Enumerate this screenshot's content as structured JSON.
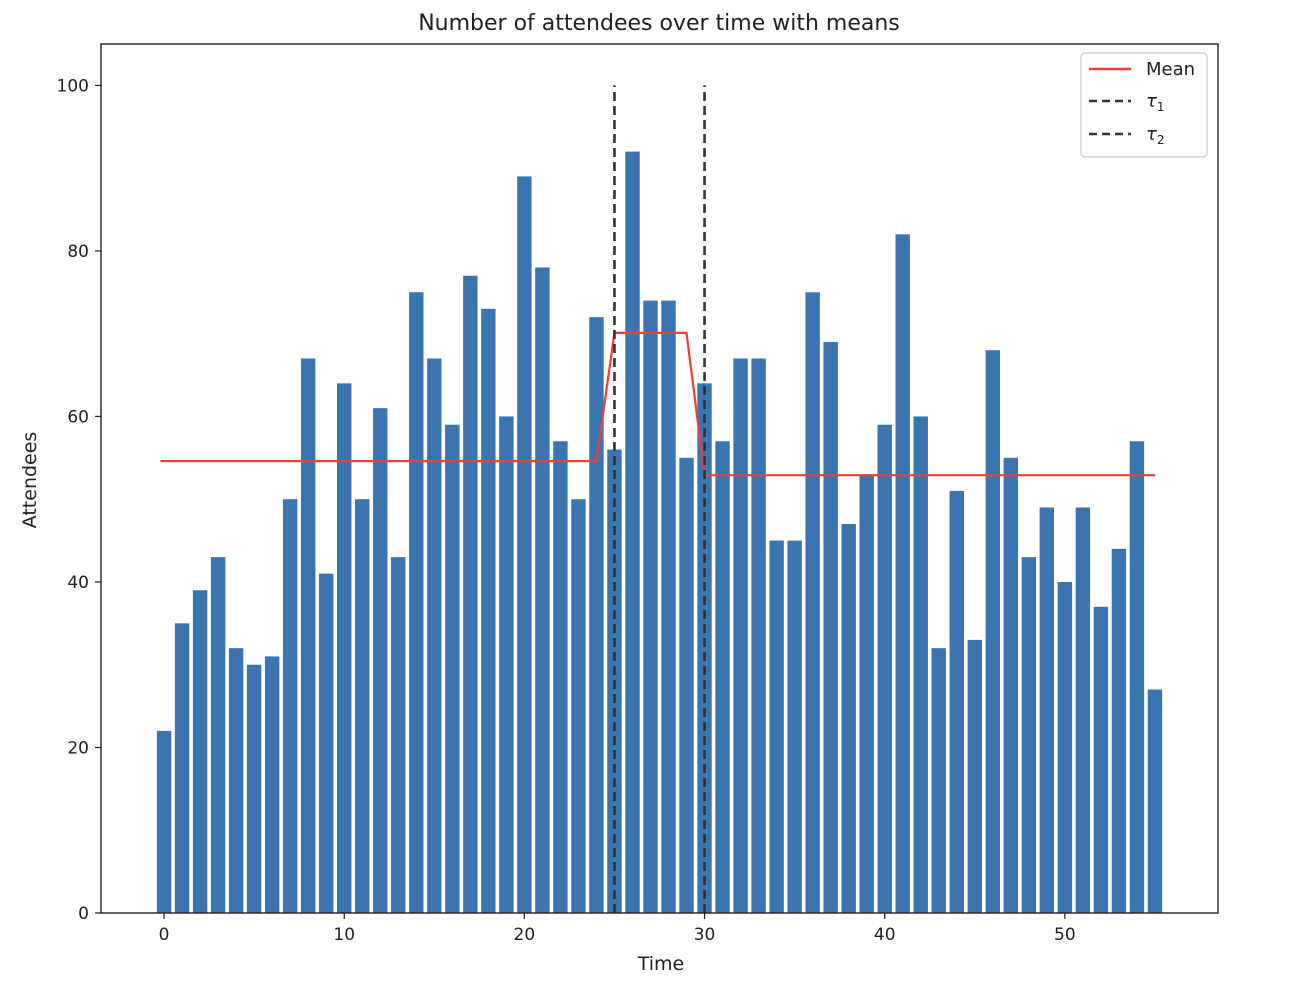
{
  "chart_data": {
    "type": "bar",
    "title": "Number of attendees over time with means",
    "xlabel": "Time",
    "ylabel": "Attendees",
    "xlim": [
      -3.5,
      58.5
    ],
    "ylim": [
      0,
      105
    ],
    "xticks": [
      0,
      10,
      20,
      30,
      40,
      50
    ],
    "yticks": [
      0,
      20,
      40,
      60,
      80,
      100
    ],
    "grid": false,
    "legend_position": "top-right",
    "colors": {
      "bars": "#3b75af",
      "mean": "#e8403a",
      "tau": "#333333"
    },
    "x": [
      0,
      1,
      2,
      3,
      4,
      5,
      6,
      7,
      8,
      9,
      10,
      11,
      12,
      13,
      14,
      15,
      16,
      17,
      18,
      19,
      20,
      21,
      22,
      23,
      24,
      25,
      26,
      27,
      28,
      29,
      30,
      31,
      32,
      33,
      34,
      35,
      36,
      37,
      38,
      39,
      40,
      41,
      42,
      43,
      44,
      45,
      46,
      47,
      48,
      49,
      50,
      51,
      52,
      53,
      54,
      55
    ],
    "values": [
      22,
      35,
      39,
      43,
      32,
      30,
      31,
      50,
      67,
      41,
      64,
      50,
      61,
      43,
      75,
      67,
      59,
      77,
      73,
      60,
      89,
      78,
      57,
      50,
      72,
      56,
      92,
      74,
      74,
      55,
      64,
      57,
      67,
      67,
      45,
      45,
      75,
      69,
      47,
      53,
      59,
      82,
      60,
      32,
      51,
      33,
      68,
      55,
      43,
      49,
      40,
      49,
      37,
      44,
      57,
      27
    ],
    "series": [
      {
        "name": "Mean",
        "type": "line",
        "x": [
          -0.2,
          24,
          25,
          29,
          30,
          55
        ],
        "y": [
          54.6,
          54.6,
          70.1,
          70.1,
          52.9,
          52.9
        ]
      }
    ],
    "vlines": [
      {
        "name": "τ1",
        "x": 25,
        "ymin": 0,
        "ymax": 100
      },
      {
        "name": "τ2",
        "x": 30,
        "ymin": 0,
        "ymax": 100
      }
    ],
    "legend": [
      {
        "label": "Mean",
        "kind": "solid",
        "color": "#e8403a"
      },
      {
        "label": "τ",
        "sub": "1",
        "kind": "dashed",
        "color": "#333333"
      },
      {
        "label": "τ",
        "sub": "2",
        "kind": "dashed",
        "color": "#333333"
      }
    ]
  }
}
